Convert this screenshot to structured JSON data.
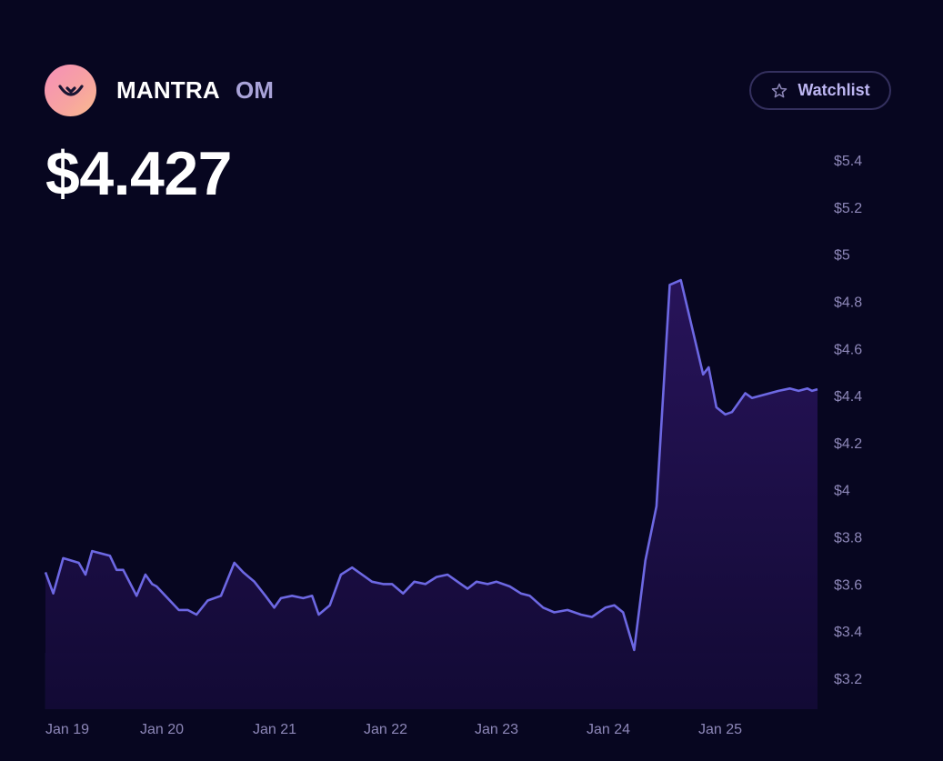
{
  "token": {
    "name": "MANTRA",
    "symbol": "OM"
  },
  "price": "$4.427",
  "watchlist_label": "Watchlist",
  "icons": {
    "logo": "mantra-logo-icon",
    "watchlist": "star-icon"
  },
  "colors": {
    "background": "#070620",
    "line": "#6d68e3",
    "logo_gradient": [
      "#f58fb8",
      "#f9bb8e"
    ],
    "symbol": "#a9a3d9",
    "tick": "#8d87b8"
  },
  "chart_data": {
    "type": "area",
    "title": "",
    "xlabel": "",
    "ylabel": "",
    "ylim": [
      3.1,
      5.5
    ],
    "yticks": [
      3.2,
      3.4,
      3.6,
      3.8,
      4,
      4.2,
      4.4,
      4.6,
      4.8,
      5,
      5.2,
      5.4
    ],
    "ytick_labels": [
      "$3.2",
      "$3.4",
      "$3.6",
      "$3.8",
      "$4",
      "$4.2",
      "$4.4",
      "$4.6",
      "$4.8",
      "$5",
      "$5.2",
      "$5.4"
    ],
    "xticks": [
      "Jan 19",
      "Jan 20",
      "Jan 21",
      "Jan 22",
      "Jan 23",
      "Jan 24",
      "Jan 25"
    ],
    "x_range": [
      0,
      6.95
    ],
    "grid": false,
    "legend": "none",
    "series": [
      {
        "x": [
          0,
          0.07,
          0.16,
          0.3,
          0.36,
          0.42,
          0.58,
          0.64,
          0.7,
          0.82,
          0.9,
          0.96,
          1.0,
          1.08,
          1.2,
          1.28,
          1.36,
          1.46,
          1.58,
          1.7,
          1.78,
          1.88,
          1.98,
          2.06,
          2.12,
          2.22,
          2.32,
          2.4,
          2.46,
          2.56,
          2.66,
          2.76,
          2.88,
          2.94,
          3.04,
          3.12,
          3.22,
          3.32,
          3.42,
          3.52,
          3.62,
          3.68,
          3.8,
          3.88,
          3.98,
          4.06,
          4.18,
          4.28,
          4.36,
          4.48,
          4.58,
          4.7,
          4.82,
          4.92,
          5.04,
          5.12,
          5.2,
          5.3,
          5.4,
          5.5,
          5.62,
          5.72,
          5.8,
          5.92,
          5.97,
          6.04,
          6.12,
          6.18,
          6.24,
          6.3,
          6.36,
          6.44,
          6.52,
          6.6,
          6.7,
          6.78,
          6.86,
          6.9,
          6.95
        ],
        "y": [
          3.65,
          3.56,
          3.71,
          3.69,
          3.64,
          3.74,
          3.72,
          3.66,
          3.66,
          3.55,
          3.64,
          3.6,
          3.59,
          3.55,
          3.49,
          3.49,
          3.47,
          3.53,
          3.55,
          3.69,
          3.65,
          3.61,
          3.55,
          3.5,
          3.54,
          3.55,
          3.54,
          3.55,
          3.47,
          3.51,
          3.64,
          3.67,
          3.63,
          3.61,
          3.6,
          3.6,
          3.56,
          3.61,
          3.6,
          3.63,
          3.64,
          3.62,
          3.58,
          3.61,
          3.6,
          3.61,
          3.59,
          3.56,
          3.55,
          3.5,
          3.48,
          3.49,
          3.47,
          3.46,
          3.5,
          3.51,
          3.48,
          3.32,
          3.7,
          3.93,
          4.87,
          4.89,
          4.73,
          4.49,
          4.52,
          4.35,
          4.32,
          4.33,
          4.37,
          4.41,
          4.39,
          4.4,
          4.41,
          4.42,
          4.43,
          4.42,
          4.43,
          4.42,
          4.427
        ]
      }
    ]
  }
}
